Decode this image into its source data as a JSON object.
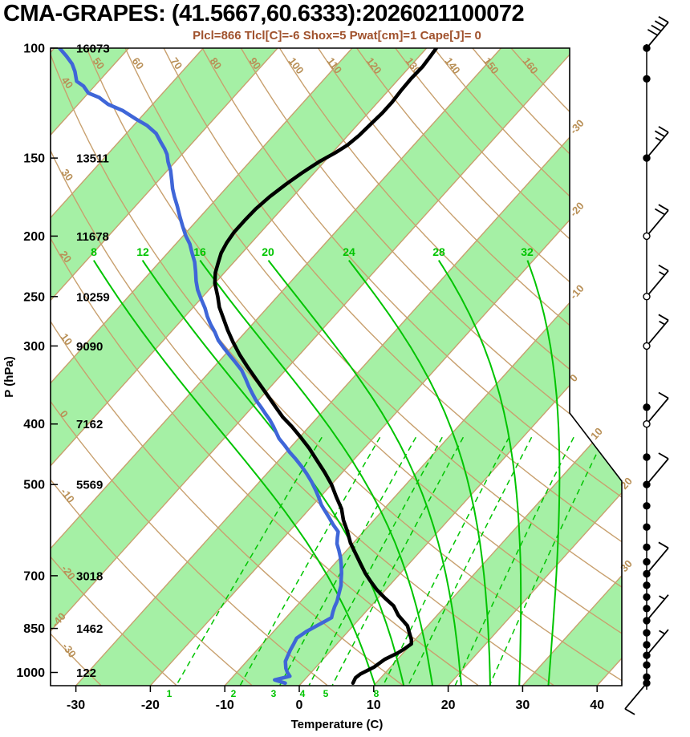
{
  "header": {
    "title": "CMA-GRAPES: (41.5667,60.6333):2026021100072",
    "params": "Plcl=866 Tlcl[C]=-6 Shox=5 Pwat[cm]=1 Cape[J]= 0",
    "params_values": {
      "Plcl": 866,
      "Tlcl_C": -6,
      "Shox": 5,
      "Pwat_cm": 1,
      "Cape_J": 0
    }
  },
  "axes": {
    "y_label": "P (hPa)",
    "x_label": "Temperature (C)",
    "pressure_ticks": [
      100,
      150,
      200,
      250,
      300,
      400,
      500,
      700,
      850,
      1000
    ],
    "heights_m": [
      16073,
      13511,
      11678,
      10259,
      9090,
      7162,
      5569,
      3018,
      1462,
      122
    ],
    "temp_ticks": [
      -30,
      -20,
      -10,
      0,
      10,
      20,
      30,
      40
    ]
  },
  "style": {
    "band_green": "#a5f0a5",
    "line_green": "#00c400",
    "tan": "#c8a06e",
    "tan_label": "#b88f56",
    "temp_color": "#000000",
    "dew_color": "#3f66d8",
    "params_color": "#a0522d"
  },
  "chart_data": {
    "type": "line",
    "subtype": "skew-t-log-p sounding",
    "title": "CMA-GRAPES: (41.5667,60.6333):2026021100072",
    "pressure_range_hpa": [
      100,
      1050
    ],
    "temp_axis_range_c": [
      -33,
      43
    ],
    "grid": {
      "isotherm_step_c": 10,
      "isotherm_labels_c": [
        -40,
        -30,
        -20,
        -10,
        0,
        10,
        20,
        30
      ],
      "dry_adiabats_c": [
        -30,
        -20,
        -10,
        0,
        10,
        20,
        30,
        40,
        50,
        60,
        70,
        80,
        90,
        100,
        110,
        120,
        130,
        140,
        150,
        160
      ],
      "moist_adiabats_c": [
        8,
        12,
        16,
        20,
        24,
        28,
        32
      ],
      "mixing_ratio_gkg": [
        1,
        2,
        3,
        4,
        5,
        8,
        10,
        15,
        20
      ],
      "mixing_ratio_labels": [
        1,
        2,
        3,
        4,
        5,
        8
      ]
    },
    "series": [
      {
        "name": "temperature",
        "color_key": "temp_color",
        "points_p_t": [
          [
            1040,
            6.9
          ],
          [
            1020,
            6.6
          ],
          [
            1006,
            6.8
          ],
          [
            980,
            7.8
          ],
          [
            953,
            8.3
          ],
          [
            930,
            9.3
          ],
          [
            915,
            9.7
          ],
          [
            900,
            10
          ],
          [
            886,
            9.5
          ],
          [
            860,
            8.2
          ],
          [
            842,
            7.3
          ],
          [
            810,
            4.8
          ],
          [
            782,
            3
          ],
          [
            760,
            0.9
          ],
          [
            737,
            -1.2
          ],
          [
            715,
            -3
          ],
          [
            694,
            -4.7
          ],
          [
            670,
            -6.5
          ],
          [
            644,
            -8.5
          ],
          [
            620,
            -10.4
          ],
          [
            593,
            -12.3
          ],
          [
            570,
            -14.1
          ],
          [
            547,
            -15.7
          ],
          [
            524,
            -17.8
          ],
          [
            500,
            -20
          ],
          [
            478,
            -22.4
          ],
          [
            458,
            -24.8
          ],
          [
            438,
            -27.3
          ],
          [
            419,
            -30
          ],
          [
            404,
            -32.3
          ],
          [
            390,
            -34.7
          ],
          [
            373,
            -37.3
          ],
          [
            356,
            -40
          ],
          [
            340,
            -42.7
          ],
          [
            324,
            -45.5
          ],
          [
            310,
            -48
          ],
          [
            296,
            -50.4
          ],
          [
            283,
            -52.6
          ],
          [
            271,
            -54.6
          ],
          [
            260,
            -56.5
          ],
          [
            250,
            -58
          ],
          [
            238,
            -60
          ],
          [
            229,
            -61.2
          ],
          [
            221,
            -62
          ],
          [
            213,
            -62.8
          ],
          [
            205,
            -63.3
          ],
          [
            197,
            -63.6
          ],
          [
            189,
            -63.6
          ],
          [
            181,
            -63.5
          ],
          [
            173,
            -63.1
          ],
          [
            165,
            -62.4
          ],
          [
            158,
            -61.6
          ],
          [
            152,
            -60.7
          ],
          [
            147,
            -59.6
          ],
          [
            143,
            -58.9
          ],
          [
            138,
            -58.5
          ],
          [
            132,
            -58.3
          ],
          [
            127,
            -58.1
          ],
          [
            122,
            -58.1
          ],
          [
            117,
            -58.3
          ],
          [
            112,
            -58.4
          ],
          [
            107,
            -58.3
          ],
          [
            103,
            -58.5
          ],
          [
            100,
            -58.7
          ]
        ]
      },
      {
        "name": "dewpoint",
        "color_key": "dew_color",
        "points_p_t": [
          [
            1040,
            -2.2
          ],
          [
            1028,
            -4
          ],
          [
            1014,
            -2.4
          ],
          [
            1000,
            -3.2
          ],
          [
            985,
            -3.9
          ],
          [
            960,
            -4.8
          ],
          [
            938,
            -5.2
          ],
          [
            921,
            -5.5
          ],
          [
            900,
            -5.8
          ],
          [
            881,
            -6.1
          ],
          [
            860,
            -5.6
          ],
          [
            842,
            -4.9
          ],
          [
            830,
            -4.4
          ],
          [
            817,
            -3.9
          ],
          [
            800,
            -4.4
          ],
          [
            785,
            -4.8
          ],
          [
            770,
            -5.1
          ],
          [
            748,
            -5.8
          ],
          [
            726,
            -6.5
          ],
          [
            710,
            -7.2
          ],
          [
            694,
            -7.9
          ],
          [
            672,
            -9
          ],
          [
            654,
            -10
          ],
          [
            638,
            -11
          ],
          [
            622,
            -12.1
          ],
          [
            608,
            -12.8
          ],
          [
            595,
            -13.4
          ],
          [
            580,
            -14.9
          ],
          [
            564,
            -16.4
          ],
          [
            551,
            -17.7
          ],
          [
            539,
            -18.9
          ],
          [
            525,
            -20.1
          ],
          [
            511,
            -21.4
          ],
          [
            495,
            -23
          ],
          [
            480,
            -24.7
          ],
          [
            467,
            -26.3
          ],
          [
            455,
            -27.9
          ],
          [
            444,
            -29.5
          ],
          [
            433,
            -31
          ],
          [
            422,
            -32.6
          ],
          [
            412,
            -33.8
          ],
          [
            403,
            -34.9
          ],
          [
            394,
            -36.1
          ],
          [
            386,
            -37.3
          ],
          [
            376,
            -38.8
          ],
          [
            366,
            -40.4
          ],
          [
            357,
            -41.7
          ],
          [
            348,
            -43
          ],
          [
            338,
            -44.4
          ],
          [
            328,
            -45.9
          ],
          [
            319,
            -47.6
          ],
          [
            310,
            -49.4
          ],
          [
            302,
            -51
          ],
          [
            294,
            -52.6
          ],
          [
            285,
            -54.1
          ],
          [
            277,
            -55.6
          ],
          [
            269,
            -57
          ],
          [
            261,
            -58.3
          ],
          [
            252,
            -60
          ],
          [
            244,
            -61.5
          ],
          [
            236,
            -62.8
          ],
          [
            228,
            -64
          ],
          [
            220,
            -65.3
          ],
          [
            213,
            -66.7
          ],
          [
            206,
            -68.1
          ],
          [
            200,
            -69.6
          ],
          [
            193,
            -71.2
          ],
          [
            186,
            -72.8
          ],
          [
            179,
            -74.4
          ],
          [
            173,
            -75.9
          ],
          [
            168,
            -77.1
          ],
          [
            163,
            -78.2
          ],
          [
            157,
            -79.6
          ],
          [
            152,
            -81
          ],
          [
            148,
            -82
          ],
          [
            145,
            -83
          ],
          [
            141,
            -84.5
          ],
          [
            137,
            -86
          ],
          [
            133,
            -88.2
          ],
          [
            130,
            -90.4
          ],
          [
            126,
            -93.2
          ],
          [
            123,
            -96
          ],
          [
            120,
            -98
          ],
          [
            118,
            -100
          ],
          [
            115,
            -101.5
          ],
          [
            113,
            -103
          ],
          [
            109,
            -104.4
          ],
          [
            106,
            -105.7
          ],
          [
            103,
            -107.4
          ],
          [
            100,
            -109.3
          ]
        ]
      }
    ],
    "winds": [
      {
        "p": 100,
        "kt": 40,
        "open": false
      },
      {
        "p": 112,
        "kt": 0,
        "open": false
      },
      {
        "p": 150,
        "kt": 25,
        "open": false
      },
      {
        "p": 200,
        "kt": 20,
        "open": true
      },
      {
        "p": 250,
        "kt": 15,
        "open": true
      },
      {
        "p": 300,
        "kt": 15,
        "open": true
      },
      {
        "p": 376,
        "kt": 0,
        "open": false
      },
      {
        "p": 400,
        "kt": 10,
        "open": true
      },
      {
        "p": 452,
        "kt": 0,
        "open": false
      },
      {
        "p": 500,
        "kt": 10,
        "open": false
      },
      {
        "p": 541,
        "kt": 0,
        "open": false
      },
      {
        "p": 585,
        "kt": 0,
        "open": false
      },
      {
        "p": 630,
        "kt": 0,
        "open": false
      },
      {
        "p": 665,
        "kt": 0,
        "open": false
      },
      {
        "p": 695,
        "kt": 10,
        "open": false
      },
      {
        "p": 725,
        "kt": 0,
        "open": false
      },
      {
        "p": 757,
        "kt": 0,
        "open": false
      },
      {
        "p": 790,
        "kt": 0,
        "open": false
      },
      {
        "p": 826,
        "kt": 5,
        "open": false
      },
      {
        "p": 864,
        "kt": 0,
        "open": false
      },
      {
        "p": 903,
        "kt": 0,
        "open": false
      },
      {
        "p": 939,
        "kt": 5,
        "open": false
      },
      {
        "p": 973,
        "kt": 0,
        "open": false
      },
      {
        "p": 1017,
        "kt": 0,
        "open": false
      },
      {
        "p": 1040,
        "kt": 10,
        "open": false,
        "ang": 230
      }
    ]
  }
}
